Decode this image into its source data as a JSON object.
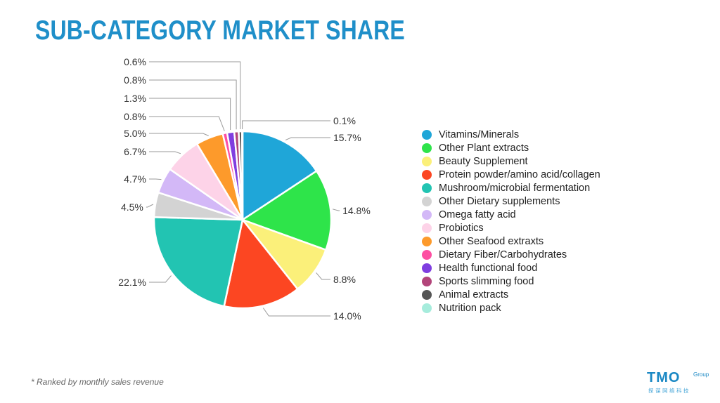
{
  "title": "SUB-CATEGORY MARKET SHARE",
  "footnote": "* Ranked by monthly sales revenue",
  "logo": {
    "main": "TMO",
    "group": "Group",
    "sub": "探谋网络科技"
  },
  "chart_data": {
    "type": "pie",
    "title": "SUB-CATEGORY MARKET SHARE",
    "legend_position": "right",
    "slices": [
      {
        "name": "Vitamins/Minerals",
        "value": 15.7,
        "label": "15.7%",
        "color": "#1fa6d8"
      },
      {
        "name": "Other Plant extracts",
        "value": 14.8,
        "label": "14.8%",
        "color": "#2ee44a"
      },
      {
        "name": "Beauty Supplement",
        "value": 8.8,
        "label": "8.8%",
        "color": "#fbf07a"
      },
      {
        "name": "Protein powder/amino acid/collagen",
        "value": 14.0,
        "label": "14.0%",
        "color": "#fc4622"
      },
      {
        "name": "Mushroom/microbial fermentation",
        "value": 22.1,
        "label": "22.1%",
        "color": "#22c4b2"
      },
      {
        "name": "Other Dietary supplements",
        "value": 4.5,
        "label": "4.5%",
        "color": "#d3d3d3"
      },
      {
        "name": "Omega fatty acid",
        "value": 4.7,
        "label": "4.7%",
        "color": "#d3b8f7"
      },
      {
        "name": "Probiotics",
        "value": 6.7,
        "label": "6.7%",
        "color": "#fdd3e8"
      },
      {
        "name": "Other Seafood extraxts",
        "value": 5.0,
        "label": "5.0%",
        "color": "#fd9a2b"
      },
      {
        "name": "Dietary Fiber/Carbohydrates",
        "value": 0.8,
        "label": "0.8%",
        "color": "#fd4fa2"
      },
      {
        "name": "Health functional food",
        "value": 1.3,
        "label": "1.3%",
        "color": "#7f3ee0"
      },
      {
        "name": "Sports slimming food",
        "value": 0.8,
        "label": "0.8%",
        "color": "#b2457a"
      },
      {
        "name": "Animal extracts",
        "value": 0.6,
        "label": "0.6%",
        "color": "#555555"
      },
      {
        "name": "Nutrition pack",
        "value": 0.1,
        "label": "0.1%",
        "color": "#a6ecdc"
      }
    ]
  }
}
